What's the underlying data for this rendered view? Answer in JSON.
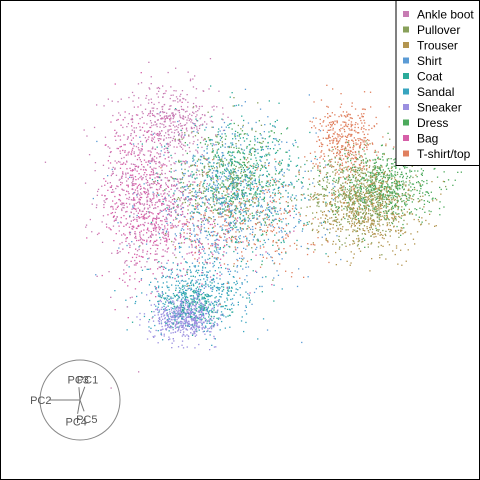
{
  "chart_data": {
    "type": "scatter",
    "legend_position": "top-right",
    "grid": false,
    "xlim": [
      -1,
      1
    ],
    "ylim": [
      -1,
      1
    ],
    "series": [
      {
        "name": "Ankle boot",
        "color": "#c77cb3",
        "clusters": [
          {
            "x": -0.4,
            "y": 0.25,
            "sx": 0.12,
            "sy": 0.22,
            "n": 650
          },
          {
            "x": -0.3,
            "y": 0.55,
            "sx": 0.1,
            "sy": 0.08,
            "n": 250
          }
        ]
      },
      {
        "name": "Pullover",
        "color": "#88a05a",
        "clusters": [
          {
            "x": 0.55,
            "y": 0.2,
            "sx": 0.12,
            "sy": 0.1,
            "n": 500
          },
          {
            "x": -0.1,
            "y": 0.25,
            "sx": 0.12,
            "sy": 0.15,
            "n": 300
          }
        ]
      },
      {
        "name": "Trouser",
        "color": "#b3954f",
        "clusters": [
          {
            "x": 0.58,
            "y": 0.15,
            "sx": 0.12,
            "sy": 0.1,
            "n": 650
          }
        ]
      },
      {
        "name": "Shirt",
        "color": "#5b9bd5",
        "clusters": [
          {
            "x": -0.05,
            "y": 0.15,
            "sx": 0.2,
            "sy": 0.18,
            "n": 700
          }
        ]
      },
      {
        "name": "Coat",
        "color": "#2bab9a",
        "clusters": [
          {
            "x": 0.0,
            "y": 0.25,
            "sx": 0.15,
            "sy": 0.15,
            "n": 600
          },
          {
            "x": -0.2,
            "y": -0.3,
            "sx": 0.08,
            "sy": 0.05,
            "n": 200
          }
        ]
      },
      {
        "name": "Sandal",
        "color": "#37a4bf",
        "clusters": [
          {
            "x": -0.2,
            "y": -0.25,
            "sx": 0.12,
            "sy": 0.08,
            "n": 450
          }
        ]
      },
      {
        "name": "Sneaker",
        "color": "#9b8fe0",
        "clusters": [
          {
            "x": -0.25,
            "y": -0.35,
            "sx": 0.07,
            "sy": 0.05,
            "n": 550
          }
        ]
      },
      {
        "name": "Dress",
        "color": "#4caa5c",
        "clusters": [
          {
            "x": 0.65,
            "y": 0.25,
            "sx": 0.12,
            "sy": 0.08,
            "n": 600
          },
          {
            "x": 0.0,
            "y": 0.3,
            "sx": 0.1,
            "sy": 0.12,
            "n": 250
          }
        ]
      },
      {
        "name": "Bag",
        "color": "#d65fa8",
        "clusters": [
          {
            "x": -0.45,
            "y": 0.2,
            "sx": 0.08,
            "sy": 0.2,
            "n": 400
          },
          {
            "x": -0.25,
            "y": 0.05,
            "sx": 0.15,
            "sy": 0.12,
            "n": 250
          }
        ]
      },
      {
        "name": "T-shirt/top",
        "color": "#e0805f",
        "clusters": [
          {
            "x": 0.48,
            "y": 0.45,
            "sx": 0.07,
            "sy": 0.08,
            "n": 400
          },
          {
            "x": 0.05,
            "y": 0.1,
            "sx": 0.15,
            "sy": 0.12,
            "n": 300
          }
        ]
      }
    ],
    "pc_axes": [
      {
        "label": "PC1",
        "angle_deg": 70,
        "length": 0.35
      },
      {
        "label": "PC2",
        "angle_deg": 180,
        "length": 0.78
      },
      {
        "label": "PC3",
        "angle_deg": 95,
        "length": 0.32
      },
      {
        "label": "PC4",
        "angle_deg": 260,
        "length": 0.35
      },
      {
        "label": "PC5",
        "angle_deg": 290,
        "length": 0.3
      }
    ]
  }
}
